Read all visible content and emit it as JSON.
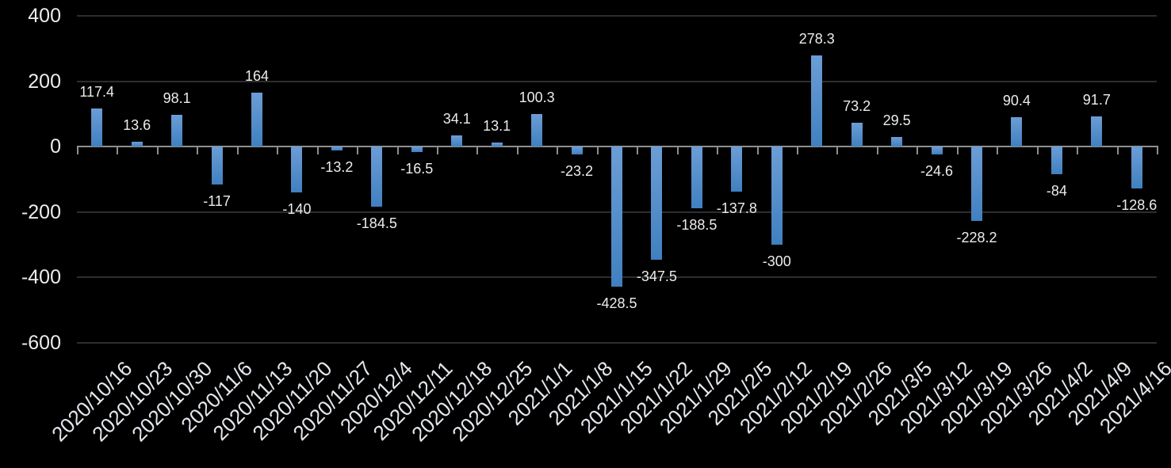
{
  "chart_data": {
    "type": "bar",
    "title": "",
    "xlabel": "",
    "ylabel": "",
    "legend": "none",
    "grid": "horizontal",
    "ylim": [
      -600,
      400
    ],
    "ytick_interval": 200,
    "yticks": [
      400,
      200,
      0,
      -200,
      -400,
      -600
    ],
    "ytick_labels": [
      "400",
      "200",
      "0",
      "-200",
      "-400",
      "-600"
    ],
    "categories": [
      "2020/10/16",
      "2020/10/23",
      "2020/10/30",
      "2020/11/6",
      "2020/11/13",
      "2020/11/20",
      "2020/11/27",
      "2020/12/4",
      "2020/12/11",
      "2020/12/18",
      "2020/12/25",
      "2021/1/1",
      "2021/1/8",
      "2021/1/15",
      "2021/1/22",
      "2021/1/29",
      "2021/2/5",
      "2021/2/12",
      "2021/2/19",
      "2021/2/26",
      "2021/3/5",
      "2021/3/12",
      "2021/3/19",
      "2021/3/26",
      "2021/4/2",
      "2021/4/9",
      "2021/4/16"
    ],
    "values": [
      117.4,
      13.6,
      98.1,
      -117,
      164,
      -140,
      -13.2,
      -184.5,
      -16.5,
      34.1,
      13.1,
      100.3,
      -23.2,
      -428.5,
      -347.5,
      -188.5,
      -137.8,
      -300,
      278.3,
      73.2,
      29.5,
      -24.6,
      -228.2,
      90.4,
      -84,
      91.7,
      -128.6
    ],
    "data_labels": [
      "117.4",
      "13.6",
      "98.1",
      "-117",
      "164",
      "-140",
      "-13.2",
      "-184.5",
      "-16.5",
      "34.1",
      "13.1",
      "100.3",
      "-23.2",
      "-428.5",
      "-347.5",
      "-188.5",
      "-137.8",
      "-300",
      "278.3",
      "73.2",
      "29.5",
      "-24.6",
      "-228.2",
      "90.4",
      "-84",
      "91.7",
      "-128.6"
    ]
  },
  "style": {
    "background": "#000000",
    "bar_gradient_top": "#6C9DD5",
    "bar_gradient_bottom": "#4080C0",
    "axis_line_color": "#8f8f8f",
    "gridline_color": "#2e2e2e",
    "data_label_color": "#ececec",
    "axis_label_color": "#e3e7ed"
  }
}
